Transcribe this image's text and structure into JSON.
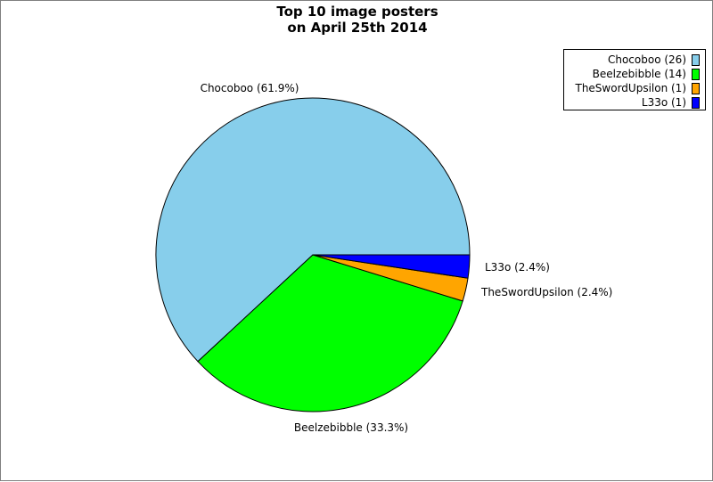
{
  "chart_data": {
    "type": "pie",
    "title_lines": [
      "Top 10 image posters",
      "on April 25th 2014"
    ],
    "slices": [
      {
        "name": "Chocoboo",
        "value": 26,
        "label": "Chocoboo (61.9%)",
        "legend": "Chocoboo (26)",
        "color": "#87ceeb"
      },
      {
        "name": "Beelzebibble",
        "value": 14,
        "label": "Beelzebibble (33.3%)",
        "legend": "Beelzebibble (14)",
        "color": "#00ff00"
      },
      {
        "name": "TheSwordUpsilon",
        "value": 1,
        "label": "TheSwordUpsilon (2.4%)",
        "legend": "TheSwordUpsilon (1)",
        "color": "#ffa500"
      },
      {
        "name": "L33o",
        "value": 1,
        "label": "L33o (2.4%)",
        "legend": "L33o (1)",
        "color": "#0000ff"
      }
    ],
    "legend_position": "top-right"
  }
}
